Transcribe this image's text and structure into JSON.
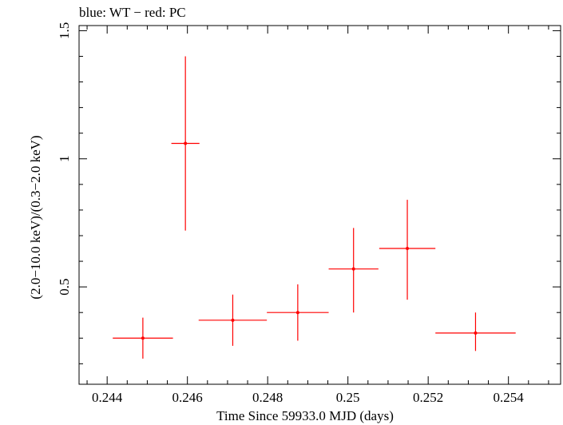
{
  "chart_data": {
    "type": "scatter",
    "title": "blue: WT − red: PC",
    "xlabel": "Time Since 59933.0 MJD (days)",
    "ylabel": "(2.0−10.0 keV)/(0.3−2.0 keV)",
    "xlim": [
      0.2433,
      0.2553
    ],
    "ylim": [
      0.12,
      1.52
    ],
    "x_ticks": [
      0.244,
      0.246,
      0.248,
      0.25,
      0.252,
      0.254
    ],
    "x_tick_labels": [
      "0.244",
      "0.246",
      "0.248",
      "0.25",
      "0.252",
      "0.254"
    ],
    "y_ticks": [
      0.5,
      1,
      1.5
    ],
    "y_tick_labels": [
      "0.5",
      "1",
      "1.5"
    ],
    "grid": false,
    "series": [
      {
        "color": "#ff0000",
        "points": [
          {
            "x": 0.24489,
            "xerr": 0.00075,
            "y": 0.3,
            "ylo": 0.22,
            "yhi": 0.38
          },
          {
            "x": 0.24595,
            "xerr": 0.00035,
            "y": 1.06,
            "ylo": 0.72,
            "yhi": 1.4
          },
          {
            "x": 0.24713,
            "xerr": 0.00085,
            "y": 0.37,
            "ylo": 0.27,
            "yhi": 0.47
          },
          {
            "x": 0.24875,
            "xerr": 0.00077,
            "y": 0.4,
            "ylo": 0.29,
            "yhi": 0.51
          },
          {
            "x": 0.25014,
            "xerr": 0.00062,
            "y": 0.57,
            "ylo": 0.4,
            "yhi": 0.73
          },
          {
            "x": 0.25148,
            "xerr": 0.0007,
            "y": 0.65,
            "ylo": 0.45,
            "yhi": 0.84
          },
          {
            "x": 0.25318,
            "xerr": 0.001,
            "y": 0.32,
            "ylo": 0.25,
            "yhi": 0.4
          }
        ]
      }
    ]
  }
}
